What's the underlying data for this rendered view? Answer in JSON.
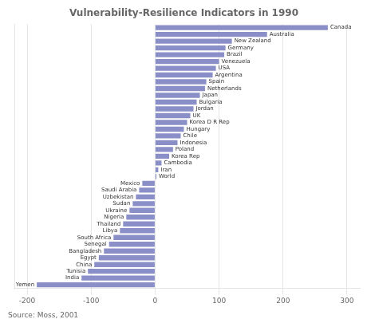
{
  "chart_data": {
    "type": "bar",
    "orientation": "horizontal",
    "title": "Vulnerability-Resilience Indicators in 1990",
    "annotations": [
      "Source: Moss, 2001"
    ],
    "categories": [
      "Canada",
      "Australia",
      "New Zealand",
      "Germany",
      "Brazil",
      "Venezuela",
      "USA",
      "Argentina",
      "Spain",
      "Netherlands",
      "Japan",
      "Bulgaria",
      "Jordan",
      "UK",
      "Korea D R Rep",
      "Hungary",
      "Chile",
      "Indonesia",
      "Poland",
      "Korea Rep",
      "Cambodia",
      "Iran",
      "World",
      "Mexico",
      "Saudi Arabia",
      "Uzbekistan",
      "Sudan",
      "Ukraine",
      "Nigeria",
      "Thailand",
      "Libya",
      "South Africa",
      "Senegal",
      "Bangladesh",
      "Egypt",
      "China",
      "Tunisia",
      "India",
      "Yemen"
    ],
    "values": [
      270,
      175,
      120,
      110,
      108,
      100,
      95,
      90,
      80,
      78,
      70,
      65,
      60,
      55,
      50,
      45,
      40,
      35,
      28,
      22,
      10,
      5,
      2,
      -20,
      -25,
      -30,
      -35,
      -40,
      -45,
      -50,
      -55,
      -65,
      -72,
      -80,
      -88,
      -95,
      -105,
      -115,
      -185
    ],
    "color": "#8b8fc8",
    "xlim": [
      -220,
      320
    ],
    "xticks": [
      -200,
      -100,
      0,
      100,
      200,
      300
    ],
    "grid": true,
    "tick_labels": "x"
  }
}
